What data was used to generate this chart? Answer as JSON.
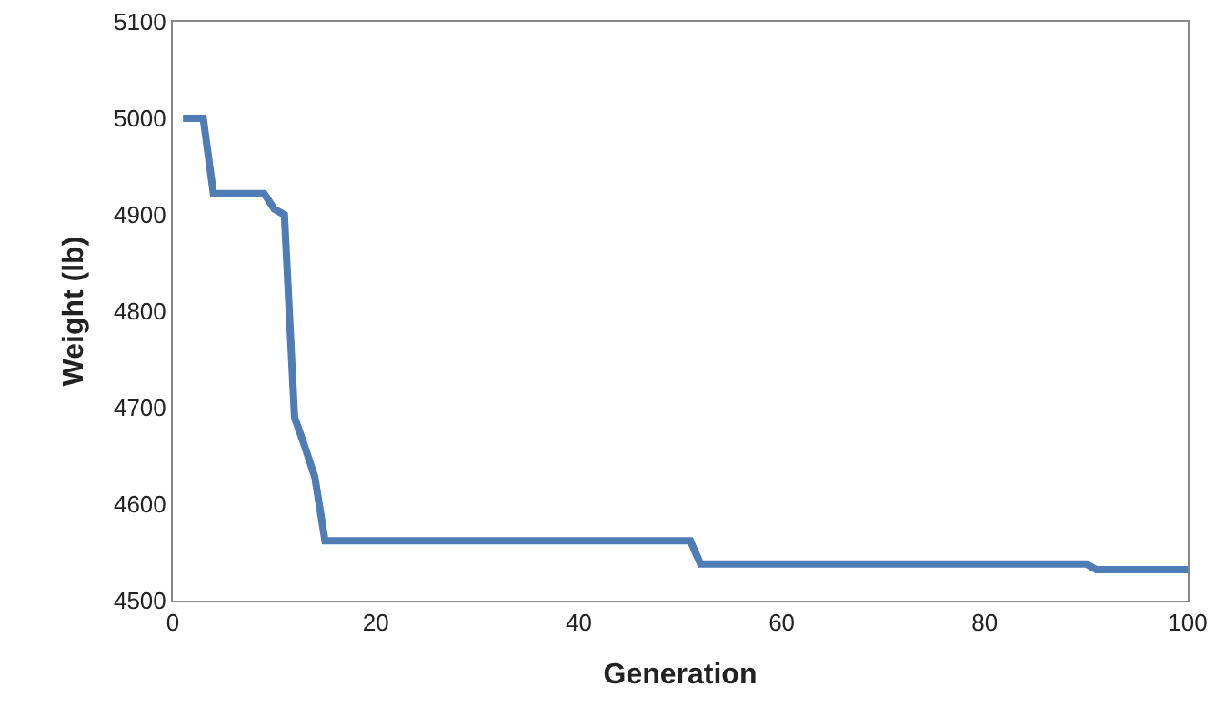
{
  "chart_data": {
    "type": "line",
    "xlabel": "Generation",
    "ylabel": "Weight (lb)",
    "x": [
      1,
      3,
      4,
      9,
      10,
      11,
      12,
      13,
      14,
      15,
      51,
      52,
      90,
      91,
      100
    ],
    "series": [
      {
        "color": "#4f7cb5",
        "values": [
          5000,
          5000,
          4922,
          4922,
          4906,
          4900,
          4690,
          4660,
          4628,
          4562,
          4562,
          4538,
          4538,
          4532,
          4532
        ]
      }
    ],
    "xlim": [
      0,
      100
    ],
    "xticks": [
      0,
      20,
      40,
      60,
      80,
      100
    ],
    "ylim": [
      4500,
      5100
    ],
    "yticks": [
      4500,
      4600,
      4700,
      4800,
      4900,
      5000,
      5100
    ],
    "grid": false,
    "marker": "none",
    "line_style": "solid"
  }
}
